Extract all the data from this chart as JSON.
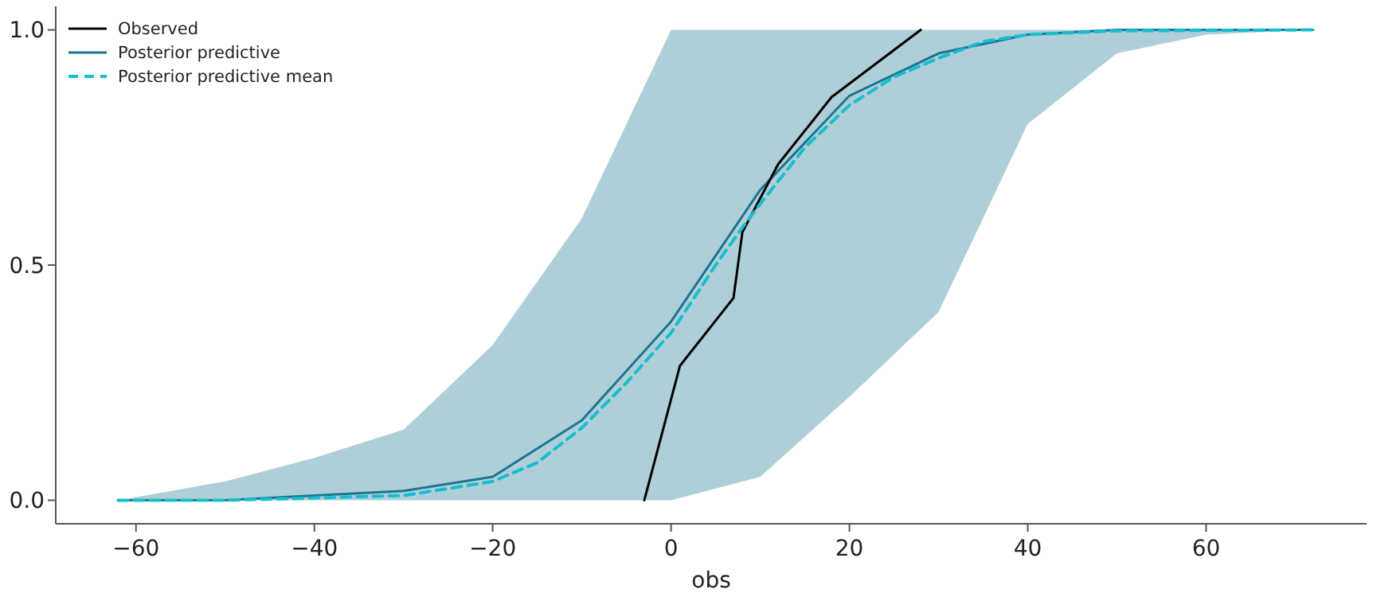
{
  "chart_data": {
    "type": "line",
    "xlabel": "obs",
    "xlim": [
      -69,
      78
    ],
    "xticks": [
      -60,
      -40,
      -20,
      0,
      20,
      40,
      60
    ],
    "ylim": [
      -0.05,
      1.05
    ],
    "yticks": [
      {
        "value": 0,
        "label": "0.0"
      },
      {
        "value": 0.5,
        "label": "0.5"
      },
      {
        "value": 1,
        "label": "1.0"
      }
    ],
    "legend": "top left",
    "grid": false,
    "series": [
      {
        "name": "Observed",
        "color": "#000000",
        "line_style": "solid",
        "x": [
          -3,
          1,
          7,
          8,
          12,
          18,
          28
        ],
        "values": [
          0,
          0.286,
          0.43,
          0.57,
          0.714,
          0.857,
          1
        ]
      },
      {
        "name": "Posterior predictive",
        "type": "line",
        "color": "#1b7590",
        "line_style": "solid",
        "x": [
          -62,
          -50,
          -40,
          -30,
          -20,
          -10,
          0,
          10,
          20,
          30,
          40,
          50,
          60,
          72
        ],
        "values": [
          0,
          0,
          0.01,
          0.02,
          0.05,
          0.17,
          0.38,
          0.66,
          0.86,
          0.95,
          0.99,
          1,
          1,
          1
        ],
        "lower": [
          0,
          0,
          0,
          0,
          0,
          0,
          0,
          0.05,
          0.22,
          0.4,
          0.8,
          0.95,
          0.99,
          1
        ],
        "upper": [
          0,
          0.04,
          0.09,
          0.15,
          0.33,
          0.6,
          1,
          1,
          1,
          1,
          1,
          1,
          1,
          1
        ]
      },
      {
        "name": "Posterior predictive mean",
        "color": "#17becf",
        "line_style": "dashed",
        "x": [
          -62,
          -50,
          -40,
          -30,
          -20,
          -15,
          -10,
          -5,
          0,
          5,
          8,
          10,
          15,
          20,
          25,
          30,
          35,
          40,
          50,
          72
        ],
        "values": [
          0,
          0,
          0.005,
          0.01,
          0.04,
          0.08,
          0.154,
          0.25,
          0.356,
          0.5,
          0.58,
          0.63,
          0.75,
          0.84,
          0.9,
          0.94,
          0.975,
          0.99,
          0.998,
          1
        ]
      }
    ]
  }
}
